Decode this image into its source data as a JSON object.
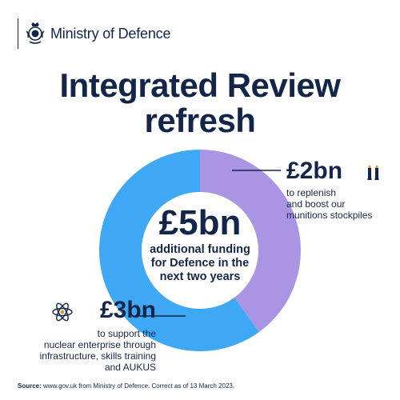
{
  "header": {
    "organisation": "Ministry of Defence",
    "crest_icon": "royal-crest-icon"
  },
  "title_lines": [
    "Integrated Review",
    "refresh"
  ],
  "center": {
    "amount": "£5bn",
    "lines": [
      "additional funding",
      "for Defence in the",
      "next two years"
    ]
  },
  "callouts": {
    "munitions": {
      "amount": "£2bn",
      "icon": "bullets-icon",
      "lines": [
        "to replenish",
        "and boost our",
        "munitions stockpiles"
      ]
    },
    "nuclear": {
      "amount": "£3bn",
      "icon": "atom-icon",
      "lines": [
        "to support the",
        "nuclear enterprise through",
        "infrastructure, skills training",
        "and AUKUS"
      ]
    }
  },
  "source": {
    "label": "Source:",
    "text": " www.gov.uk from Ministry of Defence. Correct as of 13 March 2023."
  },
  "colors": {
    "navy": "#13264a",
    "munitions": "#a995e3",
    "nuclear": "#3fa8f5",
    "icon_gold": "#c9a227"
  },
  "chart_data": {
    "type": "pie",
    "donut": true,
    "total": 5,
    "unit": "£bn",
    "slices": [
      {
        "label": "£2bn",
        "value": 2,
        "color": "#a995e3"
      },
      {
        "label": "£3bn",
        "value": 3,
        "color": "#3fa8f5"
      }
    ]
  }
}
